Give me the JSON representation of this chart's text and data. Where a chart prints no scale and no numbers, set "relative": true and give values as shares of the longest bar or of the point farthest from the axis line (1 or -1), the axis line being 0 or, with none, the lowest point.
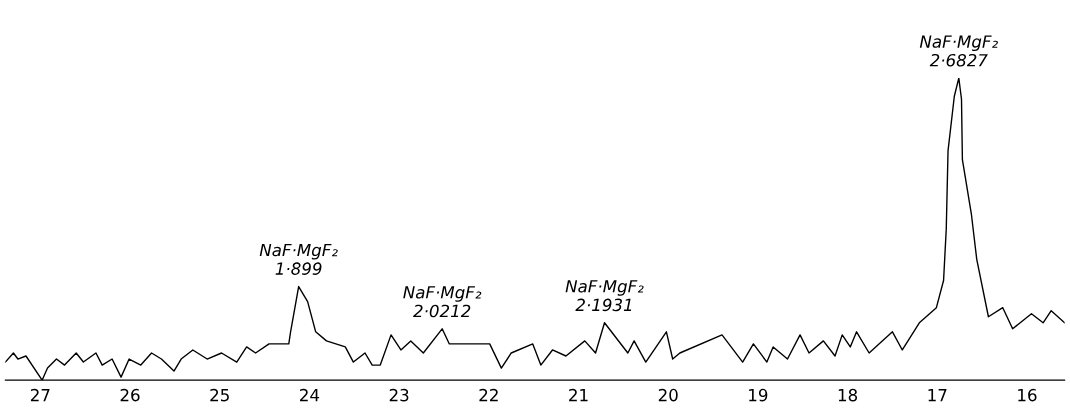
{
  "chart_data": {
    "type": "line",
    "relative": true,
    "color": "#000000",
    "line_style": "solid",
    "marker": "none",
    "grid": false,
    "legend": false,
    "tick_labels": "x",
    "x": [
      27.39,
      27.3,
      27.25,
      27.16,
      26.98,
      26.92,
      26.82,
      26.73,
      26.6,
      26.52,
      26.38,
      26.31,
      26.2,
      26.1,
      26.01,
      25.88,
      25.76,
      25.65,
      25.51,
      25.43,
      25.3,
      25.14,
      24.98,
      24.81,
      24.7,
      24.6,
      24.45,
      24.23,
      24.21,
      24.12,
      24.02,
      23.93,
      23.81,
      23.6,
      23.51,
      23.38,
      23.3,
      23.21,
      23.09,
      22.98,
      22.87,
      22.73,
      22.52,
      22.44,
      22.21,
      21.99,
      21.86,
      21.75,
      21.51,
      21.42,
      21.29,
      21.14,
      20.93,
      20.81,
      20.71,
      20.45,
      20.38,
      20.25,
      20.02,
      19.95,
      19.87,
      19.4,
      19.17,
      19.05,
      18.9,
      18.83,
      18.67,
      18.53,
      18.43,
      18.27,
      18.14,
      18.06,
      17.97,
      17.9,
      17.76,
      17.5,
      17.39,
      17.2,
      17.01,
      16.93,
      16.9,
      16.88,
      16.81,
      16.76,
      16.73,
      16.72,
      16.62,
      16.56,
      16.43,
      16.27,
      16.16,
      15.95,
      15.82,
      15.73,
      15.58
    ],
    "values": [
      0.06,
      0.09,
      0.07,
      0.08,
      0,
      0.04,
      0.07,
      0.05,
      0.09,
      0.06,
      0.09,
      0.05,
      0.07,
      0.01,
      0.07,
      0.05,
      0.09,
      0.07,
      0.03,
      0.07,
      0.1,
      0.07,
      0.09,
      0.06,
      0.11,
      0.09,
      0.12,
      0.12,
      0.16,
      0.31,
      0.26,
      0.16,
      0.13,
      0.11,
      0.06,
      0.09,
      0.05,
      0.05,
      0.15,
      0.1,
      0.13,
      0.09,
      0.17,
      0.12,
      0.12,
      0.12,
      0.04,
      0.09,
      0.12,
      0.05,
      0.1,
      0.08,
      0.13,
      0.09,
      0.19,
      0.09,
      0.13,
      0.06,
      0.16,
      0.07,
      0.09,
      0.15,
      0.06,
      0.12,
      0.06,
      0.11,
      0.07,
      0.15,
      0.09,
      0.13,
      0.08,
      0.15,
      0.11,
      0.16,
      0.09,
      0.16,
      0.1,
      0.19,
      0.24,
      0.33,
      0.5,
      0.76,
      0.94,
      1.0,
      0.93,
      0.73,
      0.55,
      0.4,
      0.21,
      0.24,
      0.17,
      0.22,
      0.19,
      0.23,
      0.19
    ],
    "xlim": [
      27.39,
      15.58
    ],
    "xticks": [
      27,
      26,
      25,
      24,
      23,
      22,
      21,
      20,
      19,
      18,
      17,
      16
    ],
    "annotations": [
      {
        "text": "NaF·MgF₂\n1·899",
        "x": 24.12,
        "y": 0.31
      },
      {
        "text": "NaF·MgF₂\n2·0212",
        "x": 22.52,
        "y": 0.17
      },
      {
        "text": "NaF·MgF₂\n2·1931",
        "x": 20.71,
        "y": 0.19
      },
      {
        "text": "NaF·MgF₂\n2·6827",
        "x": 16.76,
        "y": 1.0
      }
    ]
  }
}
